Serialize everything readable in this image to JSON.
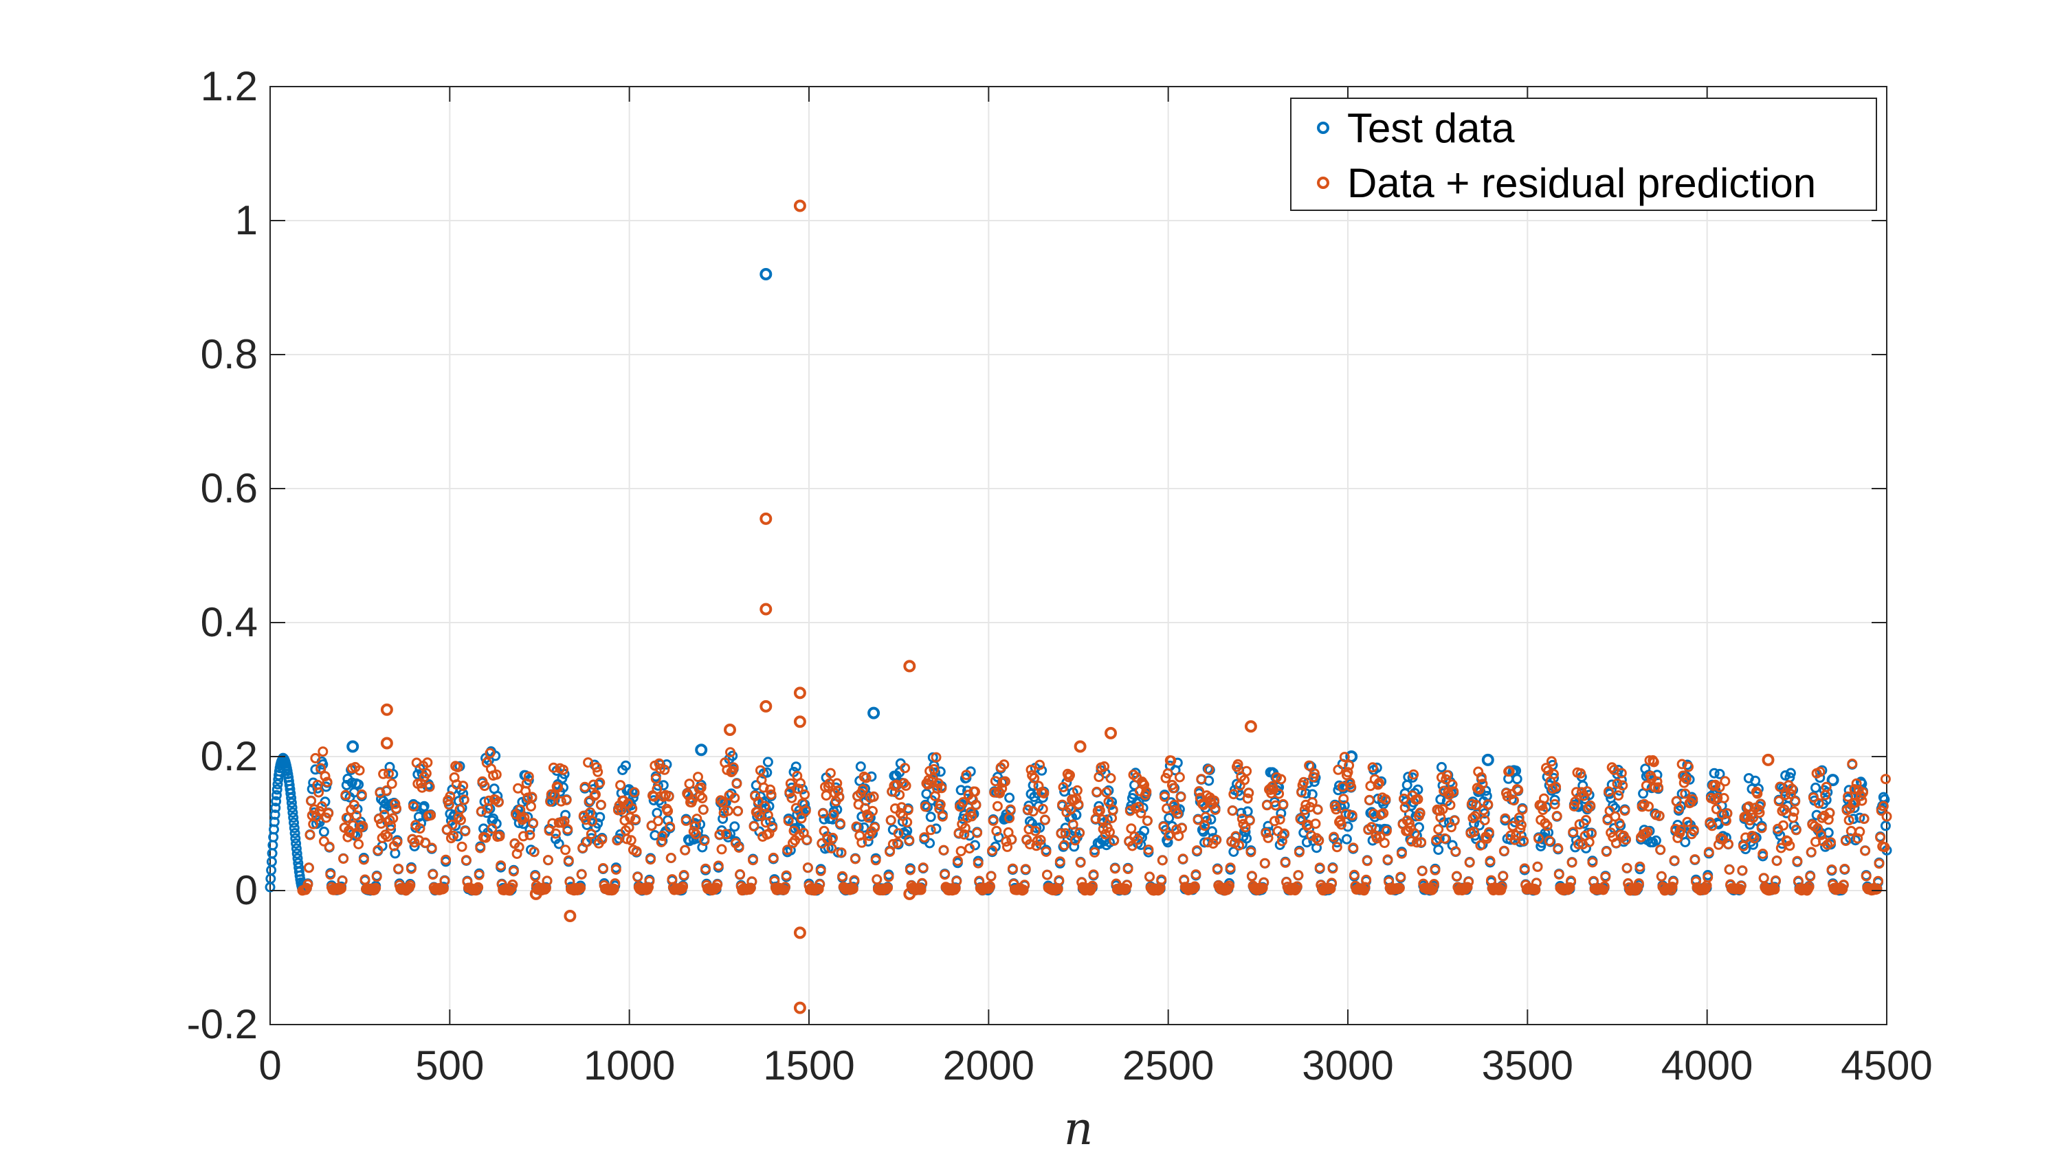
{
  "chart_data": {
    "type": "scatter",
    "xlabel": "n",
    "ylabel": "",
    "xlim": [
      0,
      4500
    ],
    "ylim": [
      -0.2,
      1.2
    ],
    "x_ticks": [
      "0",
      "500",
      "1000",
      "1500",
      "2000",
      "2500",
      "3000",
      "3500",
      "4000",
      "4500"
    ],
    "y_ticks": [
      "-0.2",
      "0",
      "0.2",
      "0.4",
      "0.6",
      "0.8",
      "1",
      "1.2"
    ],
    "grid": true,
    "legend_position": "top-right",
    "series": [
      {
        "name": "Test data",
        "color": "#0072BD",
        "pattern": {
          "period": 95,
          "start": 90,
          "end": 4500,
          "amplitudes": [
            0.21,
            0.2,
            0.19,
            0.2,
            0.19,
            0.21,
            0.18,
            0.19,
            0.2,
            0.19,
            0.2,
            0.19,
            0.21,
            0.2,
            0.19,
            0.18,
            0.2,
            0.19,
            0.2,
            0.18,
            0.19,
            0.19,
            0.18,
            0.19,
            0.19,
            0.2,
            0.19,
            0.19,
            0.18,
            0.19,
            0.2,
            0.19,
            0.18,
            0.19,
            0.18,
            0.19,
            0.2,
            0.18,
            0.19,
            0.2,
            0.19,
            0.18,
            0.17,
            0.19,
            0.18,
            0.19,
            0.17
          ]
        },
        "initial_segment": {
          "x_start": 0,
          "x_end": 90,
          "peak_x": 35,
          "peak_y": 0.195
        },
        "outliers": [
          [
            1380,
            0.92
          ],
          [
            1680,
            0.265
          ],
          [
            230,
            0.215
          ],
          [
            1200,
            0.21
          ],
          [
            3010,
            0.2
          ],
          [
            3390,
            0.195
          ],
          [
            4350,
            0.165
          ]
        ]
      },
      {
        "name": "Data + residual prediction",
        "color": "#D95319",
        "pattern": {
          "period": 95,
          "start": 90,
          "end": 4500,
          "amplitudes": [
            0.21,
            0.2,
            0.19,
            0.2,
            0.19,
            0.21,
            0.18,
            0.19,
            0.2,
            0.19,
            0.2,
            0.19,
            0.21,
            0.2,
            0.19,
            0.18,
            0.2,
            0.19,
            0.2,
            0.18,
            0.19,
            0.19,
            0.18,
            0.19,
            0.19,
            0.2,
            0.19,
            0.19,
            0.18,
            0.19,
            0.2,
            0.19,
            0.18,
            0.19,
            0.18,
            0.19,
            0.2,
            0.18,
            0.19,
            0.2,
            0.19,
            0.18,
            0.17,
            0.19,
            0.18,
            0.19,
            0.17
          ]
        },
        "outliers": [
          [
            1475,
            1.022
          ],
          [
            1380,
            0.555
          ],
          [
            1380,
            0.42
          ],
          [
            1780,
            0.335
          ],
          [
            1475,
            0.295
          ],
          [
            1380,
            0.275
          ],
          [
            325,
            0.27
          ],
          [
            325,
            0.22
          ],
          [
            1475,
            0.252
          ],
          [
            2730,
            0.245
          ],
          [
            1280,
            0.24
          ],
          [
            2340,
            0.235
          ],
          [
            2255,
            0.215
          ],
          [
            4170,
            0.195
          ],
          [
            835,
            -0.038
          ],
          [
            1475,
            -0.063
          ],
          [
            1475,
            -0.175
          ],
          [
            1780,
            -0.005
          ],
          [
            740,
            -0.005
          ]
        ]
      }
    ]
  }
}
